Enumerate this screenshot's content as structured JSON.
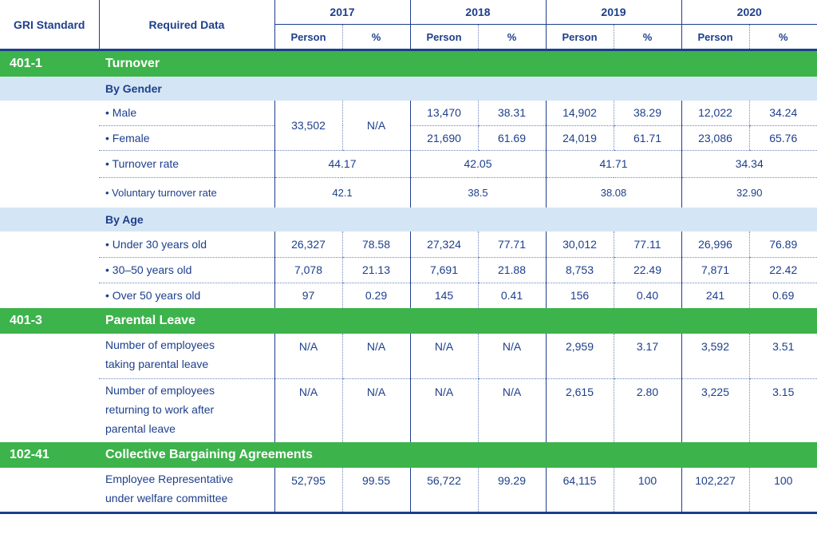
{
  "header": {
    "col_standard": "GRI Standard",
    "col_required": "Required Data",
    "years": [
      "2017",
      "2018",
      "2019",
      "2020"
    ],
    "person": "Person",
    "pct": "%"
  },
  "turnover": {
    "code": "401-1",
    "title": "Turnover",
    "by_gender": "By Gender",
    "male": {
      "label": "• Male",
      "v2018p": "13,470",
      "v2018pct": "38.31",
      "v2019p": "14,902",
      "v2019pct": "38.29",
      "v2020p": "12,022",
      "v2020pct": "34.24"
    },
    "female": {
      "label": "• Female",
      "v2018p": "21,690",
      "v2018pct": "61.69",
      "v2019p": "24,019",
      "v2019pct": "61.71",
      "v2020p": "23,086",
      "v2020pct": "65.76"
    },
    "gender2017": {
      "person": "33,502",
      "pct": "N/A"
    },
    "rate": {
      "label": "• Turnover rate",
      "v2017": "44.17",
      "v2018": "42.05",
      "v2019": "41.71",
      "v2020": "34.34"
    },
    "voluntary": {
      "label": "• Voluntary turnover rate",
      "v2017": "42.1",
      "v2018": "38.5",
      "v2019": "38.08",
      "v2020": "32.90"
    },
    "by_age": "By Age",
    "age": [
      {
        "label": "• Under 30 years old",
        "v": [
          "26,327",
          "78.58",
          "27,324",
          "77.71",
          "30,012",
          "77.11",
          "26,996",
          "76.89"
        ]
      },
      {
        "label": "• 30–50 years old",
        "v": [
          "7,078",
          "21.13",
          "7,691",
          "21.88",
          "8,753",
          "22.49",
          "7,871",
          "22.42"
        ]
      },
      {
        "label": "• Over 50 years old",
        "v": [
          "97",
          "0.29",
          "145",
          "0.41",
          "156",
          "0.40",
          "241",
          "0.69"
        ]
      }
    ]
  },
  "parental": {
    "code": "401-3",
    "title": "Parental Leave",
    "rows": [
      {
        "line1": "Number of employees",
        "line2": "taking parental leave",
        "line3": "",
        "v": [
          "N/A",
          "N/A",
          "N/A",
          "N/A",
          "2,959",
          "3.17",
          "3,592",
          "3.51"
        ]
      },
      {
        "line1": "Number of employees",
        "line2": "returning to work after",
        "line3": "parental leave",
        "v": [
          "N/A",
          "N/A",
          "N/A",
          "N/A",
          "2,615",
          "2.80",
          "3,225",
          "3.15"
        ]
      }
    ]
  },
  "cba": {
    "code": "102-41",
    "title": "Collective Bargaining Agreements",
    "row": {
      "line1": "Employee Representative",
      "line2": "under welfare committee",
      "v": [
        "52,795",
        "99.55",
        "56,722",
        "99.29",
        "64,115",
        "100",
        "102,227",
        "100"
      ]
    }
  }
}
